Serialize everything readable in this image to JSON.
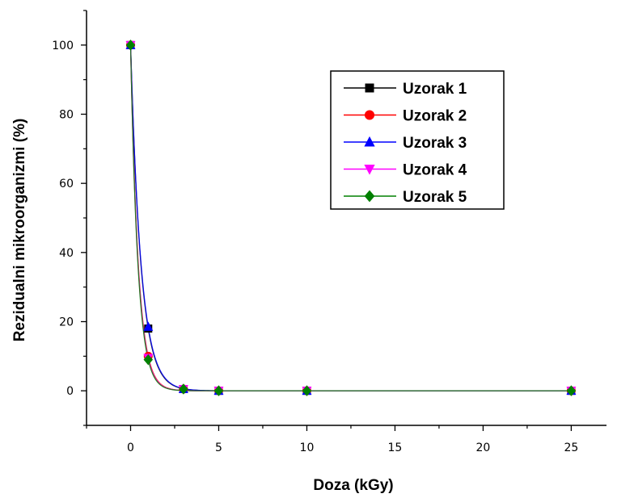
{
  "chart_data": {
    "type": "scatter",
    "title": "",
    "xlabel": "Doza (kGy)",
    "ylabel": "Rezidualni mikroorganizmi (%)",
    "xlim": [
      -2.5,
      27
    ],
    "ylim": [
      -10,
      110
    ],
    "x_ticks": [
      0,
      5,
      10,
      15,
      20,
      25
    ],
    "y_ticks": [
      0,
      20,
      40,
      60,
      80,
      100
    ],
    "x_tick_labels": [
      "0",
      "5",
      "10",
      "15",
      "20",
      "25"
    ],
    "y_tick_labels": [
      "0",
      "20",
      "40",
      "60",
      "80",
      "100"
    ],
    "x": [
      0,
      1,
      3,
      5,
      10,
      25
    ],
    "fitted_curves": true,
    "grid": false,
    "legend_position": "top-right, boxed",
    "series": [
      {
        "name": "Uzorak 1",
        "color": "#000000",
        "marker": "square",
        "values": [
          100,
          18,
          0.5,
          0,
          0,
          0
        ]
      },
      {
        "name": "Uzorak 2",
        "color": "#ff0000",
        "marker": "circle",
        "values": [
          100,
          10,
          0.5,
          0,
          0,
          0
        ]
      },
      {
        "name": "Uzorak 3",
        "color": "#0000ff",
        "marker": "triangle-up",
        "values": [
          100,
          18.5,
          0.5,
          0,
          0,
          0
        ]
      },
      {
        "name": "Uzorak 4",
        "color": "#ff00ff",
        "marker": "triangle-down",
        "values": [
          100,
          9.5,
          0.5,
          0,
          0,
          0
        ]
      },
      {
        "name": "Uzorak 5",
        "color": "#008000",
        "marker": "diamond",
        "values": [
          100,
          9,
          0.5,
          0,
          0,
          0
        ]
      }
    ]
  }
}
